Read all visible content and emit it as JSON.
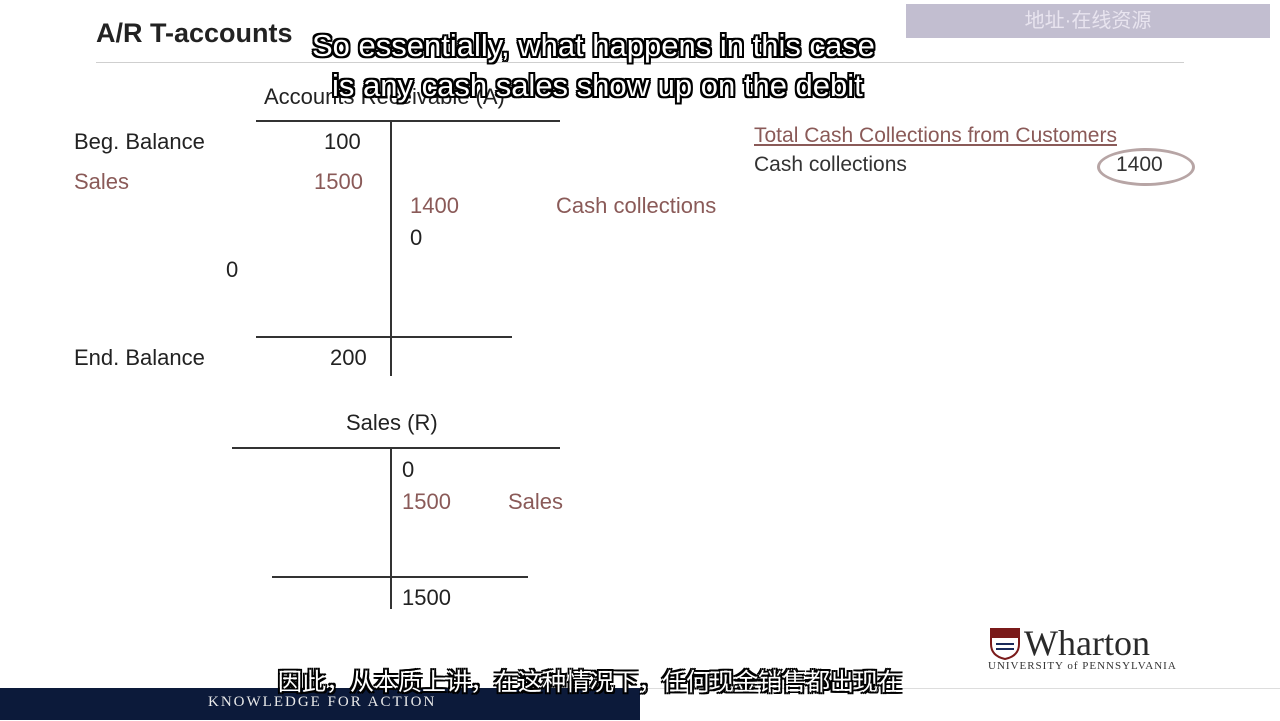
{
  "slide": {
    "title": "A/R T-accounts",
    "watermark": "地址·在线资源"
  },
  "subtitles": {
    "en_line1": "So essentially, what happens in this case",
    "en_line2": "is any cash sales show up on the debit",
    "cn": "因此，从本质上讲，在这种情况下，任何现金销售都出现在"
  },
  "ar_account": {
    "title": "Accounts Receivable (A)",
    "beg_label": "Beg. Balance",
    "beg_value": "100",
    "sales_label": "Sales",
    "sales_value": "1500",
    "collections_value": "1400",
    "collections_label": "Cash collections",
    "credit_zero": "0",
    "debit_zero": "0",
    "end_label": "End. Balance",
    "end_value": "200"
  },
  "sales_account": {
    "title": "Sales (R)",
    "credit_zero": "0",
    "credit_value": "1500",
    "credit_label": "Sales",
    "end_value": "1500"
  },
  "cash_collections_box": {
    "title": "Total Cash Collections from Customers",
    "label": "Cash collections",
    "value": "1400"
  },
  "footer": {
    "tagline": "KNOWLEDGE FOR ACTION",
    "logo_main": "Wharton",
    "logo_sub": "UNIVERSITY of PENNSYLVANIA"
  },
  "colors": {
    "brown_accent": "#8a5a58",
    "footer_navy": "#0c1a3a",
    "circle": "#b7a5a5"
  }
}
